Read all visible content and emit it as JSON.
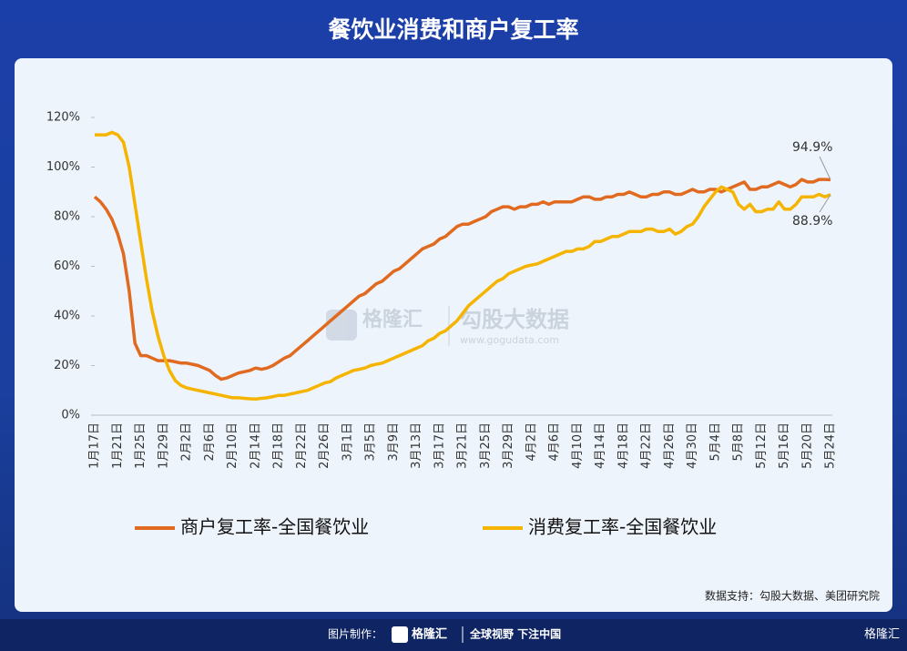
{
  "header": {
    "title": "餐饮业消费和商户复工率"
  },
  "chart_data": {
    "type": "line",
    "categories": [
      "1月17日",
      null,
      null,
      null,
      "1月21日",
      null,
      null,
      null,
      "1月25日",
      null,
      null,
      null,
      "1月29日",
      null,
      null,
      null,
      "2月2日",
      null,
      null,
      null,
      "2月6日",
      null,
      null,
      null,
      "2月10日",
      null,
      null,
      null,
      "2月14日",
      null,
      null,
      null,
      "2月18日",
      null,
      null,
      null,
      "2月22日",
      null,
      null,
      null,
      "2月26日",
      null,
      null,
      null,
      "3月1日",
      null,
      null,
      null,
      "3月5日",
      null,
      null,
      null,
      "3月9日",
      null,
      null,
      null,
      "3月13日",
      null,
      null,
      null,
      "3月17日",
      null,
      null,
      null,
      "3月21日",
      null,
      null,
      null,
      "3月25日",
      null,
      null,
      null,
      "3月29日",
      null,
      null,
      null,
      "4月2日",
      null,
      null,
      null,
      "4月6日",
      null,
      null,
      null,
      "4月10日",
      null,
      null,
      null,
      "4月14日",
      null,
      null,
      null,
      "4月18日",
      null,
      null,
      null,
      "4月22日",
      null,
      null,
      null,
      "4月26日",
      null,
      null,
      null,
      "4月30日",
      null,
      null,
      null,
      "5月4日",
      null,
      null,
      null,
      "5月8日",
      null,
      null,
      null,
      "5月12日",
      null,
      null,
      null,
      "5月16日",
      null,
      null,
      null,
      "5月20日",
      null,
      null,
      null,
      "5月24日"
    ],
    "series": [
      {
        "name": "商户复工率-全国餐饮业",
        "color": "#e06a1f",
        "values": [
          88,
          86,
          83,
          79,
          73,
          65,
          50,
          29,
          24,
          24,
          23,
          22,
          22,
          22,
          21.5,
          21,
          21,
          20.5,
          20,
          19,
          18,
          16,
          14.5,
          15,
          16,
          17,
          17.5,
          18,
          19,
          18.5,
          19,
          20,
          21.5,
          23,
          24,
          26,
          28,
          30,
          32,
          34,
          36,
          38,
          40,
          42,
          44,
          46,
          48,
          49,
          51,
          53,
          54,
          56,
          58,
          59,
          61,
          63,
          65,
          67,
          68,
          69,
          71,
          72,
          74,
          76,
          77,
          77,
          78,
          79,
          80,
          82,
          83,
          84,
          84,
          83,
          84,
          84,
          85,
          85,
          86,
          85,
          86,
          86,
          86,
          86,
          87,
          88,
          88,
          87,
          87,
          88,
          88,
          89,
          89,
          90,
          89,
          88,
          88,
          89,
          89,
          90,
          90,
          89,
          89,
          90,
          91,
          90,
          90,
          91,
          91,
          90,
          91,
          92,
          93,
          94,
          91,
          91,
          92,
          92,
          93,
          94,
          93,
          92,
          93,
          95,
          94,
          94,
          95,
          95,
          94.9
        ]
      },
      {
        "name": "消费复工率-全国餐饮业",
        "color": "#f5b400",
        "values": [
          113,
          113,
          113,
          114,
          113,
          110,
          100,
          85,
          70,
          55,
          42,
          32,
          24,
          18,
          14,
          12,
          11,
          10.5,
          10,
          9.5,
          9,
          8.5,
          8,
          7.5,
          7,
          7,
          6.8,
          6.6,
          6.5,
          6.8,
          7,
          7.5,
          8,
          8,
          8.5,
          9,
          9.5,
          10,
          11,
          12,
          13,
          13.5,
          15,
          16,
          17,
          18,
          18.5,
          19,
          20,
          20.5,
          21,
          22,
          23,
          24,
          25,
          26,
          27,
          28,
          30,
          31,
          33,
          34,
          36,
          38,
          41,
          44,
          46,
          48,
          50,
          52,
          54,
          55,
          57,
          58,
          59,
          60,
          60.5,
          61,
          62,
          63,
          64,
          65,
          66,
          66,
          67,
          67,
          68,
          70,
          70,
          71,
          72,
          72,
          73,
          74,
          74,
          74,
          75,
          75,
          74,
          74,
          75,
          73,
          74,
          76,
          77,
          80,
          84,
          87,
          90,
          92,
          91,
          90,
          85,
          83,
          85,
          82,
          82,
          83,
          83,
          86,
          83,
          83,
          85,
          88,
          88,
          88,
          89,
          88,
          88.9
        ]
      }
    ],
    "ylim": [
      0,
      120
    ],
    "yticks": [
      {
        "value": 0,
        "label": "0%"
      },
      {
        "value": 20,
        "label": "20%"
      },
      {
        "value": 40,
        "label": "40%"
      },
      {
        "value": 60,
        "label": "60%"
      },
      {
        "value": 80,
        "label": "80%"
      },
      {
        "value": 100,
        "label": "100%"
      },
      {
        "value": 120,
        "label": "120%"
      }
    ],
    "annotations": [
      "94.9%",
      "88.9%"
    ],
    "source": "数据支持：勾股大数据、美团研究院"
  },
  "watermark": {
    "brand": "格隆汇",
    "partner": "勾股大数据",
    "url": "www.gogudata.com"
  },
  "footer": {
    "credit": "图片制作：",
    "brand": "格隆汇",
    "slogan": "全球视野 下注中国",
    "corner": "格隆汇"
  }
}
